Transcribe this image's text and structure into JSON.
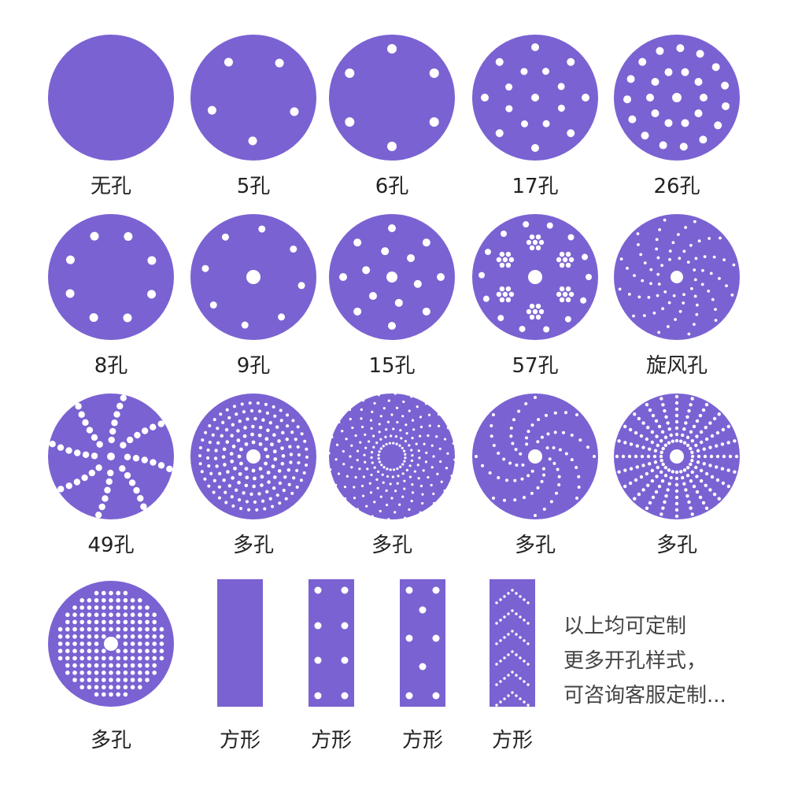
{
  "colors": {
    "disc": "#7b62d2",
    "hole": "#ffffff",
    "text": "#222222"
  },
  "discs": [
    {
      "label": "无孔",
      "pattern": "none"
    },
    {
      "label": "5孔",
      "pattern": "5-hole"
    },
    {
      "label": "6孔",
      "pattern": "6-hole"
    },
    {
      "label": "17孔",
      "pattern": "17-hole"
    },
    {
      "label": "26孔",
      "pattern": "26-hole"
    },
    {
      "label": "8孔",
      "pattern": "8-hole"
    },
    {
      "label": "9孔",
      "pattern": "9-hole"
    },
    {
      "label": "15孔",
      "pattern": "15-hole"
    },
    {
      "label": "57孔",
      "pattern": "57-hole"
    },
    {
      "label": "旋风孔",
      "pattern": "cyclone-hole"
    },
    {
      "label": "49孔",
      "pattern": "49-hole"
    },
    {
      "label": "多孔",
      "pattern": "multi-hole-rings"
    },
    {
      "label": "多孔",
      "pattern": "multi-hole-spiral"
    },
    {
      "label": "多孔",
      "pattern": "multi-hole-curved-arms"
    },
    {
      "label": "多孔",
      "pattern": "multi-hole-radial-lines"
    },
    {
      "label": "多孔",
      "pattern": "multi-hole-grid"
    }
  ],
  "strips": [
    {
      "label": "方形",
      "pattern": "strip-none"
    },
    {
      "label": "方形",
      "pattern": "strip-8-hole"
    },
    {
      "label": "方形",
      "pattern": "strip-zigzag-holes"
    },
    {
      "label": "方形",
      "pattern": "strip-chevron-holes"
    }
  ],
  "note": {
    "line1": "以上均可定制",
    "line2": "更多开孔样式，",
    "line3": "可咨询客服定制..."
  }
}
